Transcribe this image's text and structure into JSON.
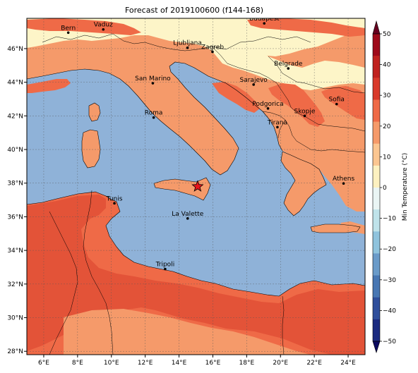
{
  "title": "Forecast of 2019100600 (f144-168)",
  "map": {
    "lon_range": [
      5,
      25
    ],
    "lat_range": [
      27.8,
      47.8
    ],
    "x_ticks": [
      {
        "v": 6,
        "label": "6°E"
      },
      {
        "v": 8,
        "label": "8°E"
      },
      {
        "v": 10,
        "label": "10°E"
      },
      {
        "v": 12,
        "label": "12°E"
      },
      {
        "v": 14,
        "label": "14°E"
      },
      {
        "v": 16,
        "label": "16°E"
      },
      {
        "v": 18,
        "label": "18°E"
      },
      {
        "v": 20,
        "label": "20°E"
      },
      {
        "v": 22,
        "label": "22°E"
      },
      {
        "v": 24,
        "label": "24°E"
      }
    ],
    "y_ticks": [
      {
        "v": 28,
        "label": "28°N"
      },
      {
        "v": 30,
        "label": "30°N"
      },
      {
        "v": 32,
        "label": "32°N"
      },
      {
        "v": 34,
        "label": "34°N"
      },
      {
        "v": 36,
        "label": "36°N"
      },
      {
        "v": 38,
        "label": "38°N"
      },
      {
        "v": 40,
        "label": "40°N"
      },
      {
        "v": 42,
        "label": "42°N"
      },
      {
        "v": 44,
        "label": "44°N"
      },
      {
        "v": 46,
        "label": "46°N"
      }
    ],
    "cities": [
      {
        "name": "Bern",
        "lon": 7.45,
        "lat": 46.95
      },
      {
        "name": "Vaduz",
        "lon": 9.52,
        "lat": 47.14
      },
      {
        "name": "Budapest",
        "lon": 19.04,
        "lat": 47.5
      },
      {
        "name": "Ljubljana",
        "lon": 14.5,
        "lat": 46.05
      },
      {
        "name": "Zagreb",
        "lon": 15.98,
        "lat": 45.81
      },
      {
        "name": "Belgrade",
        "lon": 20.46,
        "lat": 44.82
      },
      {
        "name": "San Marino",
        "lon": 12.45,
        "lat": 43.94
      },
      {
        "name": "Sarajevo",
        "lon": 18.41,
        "lat": 43.86
      },
      {
        "name": "Sofia",
        "lon": 23.32,
        "lat": 42.7
      },
      {
        "name": "Roma",
        "lon": 12.5,
        "lat": 41.9
      },
      {
        "name": "Podgorica",
        "lon": 19.26,
        "lat": 42.44
      },
      {
        "name": "Skopje",
        "lon": 21.43,
        "lat": 42.0
      },
      {
        "name": "Tirana",
        "lon": 19.82,
        "lat": 41.33
      },
      {
        "name": "Athens",
        "lon": 23.73,
        "lat": 37.98
      },
      {
        "name": "Tunis",
        "lon": 10.18,
        "lat": 36.8
      },
      {
        "name": "La Valette",
        "lon": 14.51,
        "lat": 35.9
      },
      {
        "name": "Tripoli",
        "lon": 13.18,
        "lat": 32.89
      }
    ],
    "marker": {
      "name": "star-marker",
      "lon": 15.1,
      "lat": 37.8
    }
  },
  "colorbar": {
    "label": "Min Temperature (°C)",
    "ticks": [
      "50",
      "40",
      "30",
      "20",
      "10",
      "0",
      "−10",
      "−20",
      "−30",
      "−40",
      "−50"
    ],
    "colors": [
      "#9e0a1a",
      "#c0221f",
      "#d93a2b",
      "#ef6a47",
      "#f59a6a",
      "#fbc691",
      "#fdf1c0",
      "#eaf5f4",
      "#bfe3ea",
      "#8fc3dd",
      "#6a9bc9",
      "#4877b3",
      "#2f4f9c",
      "#1b2a80"
    ],
    "arrow_top": "#67001f",
    "arrow_bottom": "#0b0a60"
  },
  "legend_colors": {
    "sea": "#8fb2d8",
    "warm_land": "#f59a6a",
    "hot_land": "#ef6a47",
    "cool_land": "#fdf5c8",
    "very_hot": "#e35338"
  }
}
